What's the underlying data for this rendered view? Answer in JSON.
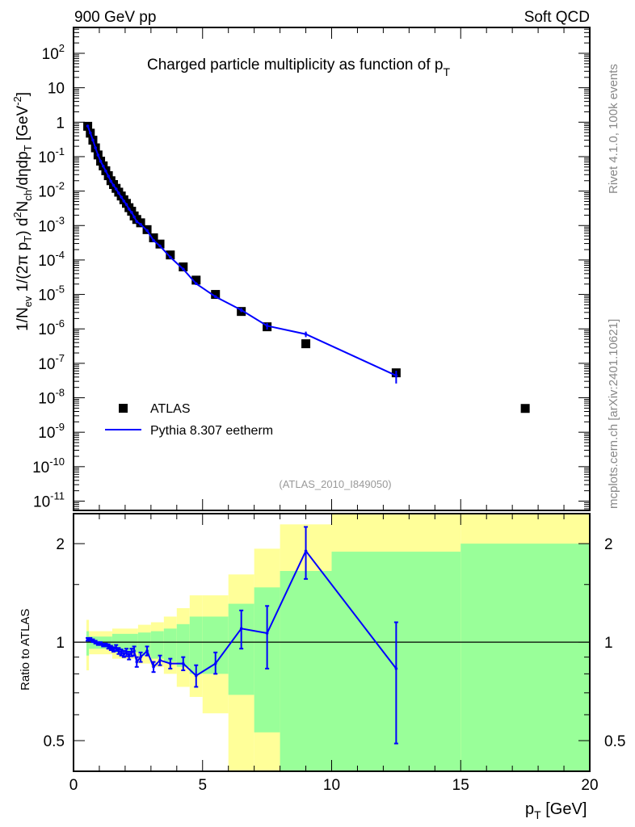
{
  "header": {
    "left": "900 GeV pp",
    "right": "Soft QCD"
  },
  "side_text": {
    "top": "Rivet 4.1.0,  100k events",
    "bottom": "mcplots.cern.ch [arXiv:2401.10621]"
  },
  "analysis_id": "(ATLAS_2010_I849050)",
  "chart_data": [
    {
      "type": "scatter",
      "title": "Charged particle multiplicity as function of p_T",
      "xlabel": "p_T [GeV]",
      "ylabel": "1/N_ev  1/(2π p_T)  d²N_ch/dηdp_T [GeV^-2]",
      "yscale": "log",
      "xlim": [
        0,
        20
      ],
      "ylim_log10": [
        -11.27,
        2.75
      ],
      "ytick_labels": [
        "10^2",
        "10",
        "1",
        "10^-1",
        "10^-2",
        "10^-3",
        "10^-4",
        "10^-5",
        "10^-6",
        "10^-7",
        "10^-8",
        "10^-9",
        "10^-10",
        "10^-11"
      ],
      "ytick_exponents": [
        2,
        1,
        0,
        -1,
        -2,
        -3,
        -4,
        -5,
        -6,
        -7,
        -8,
        -9,
        -10,
        -11
      ],
      "legend": {
        "placement": "bottom-left",
        "entries": [
          "ATLAS",
          "Pythia 8.307 eetherm"
        ]
      },
      "series": [
        {
          "name": "ATLAS",
          "style": "square-marker",
          "color": "#000000",
          "x": [
            0.55,
            0.65,
            0.75,
            0.85,
            0.95,
            1.05,
            1.15,
            1.25,
            1.35,
            1.45,
            1.55,
            1.65,
            1.75,
            1.85,
            1.95,
            2.05,
            2.15,
            2.25,
            2.35,
            2.45,
            2.6,
            2.85,
            3.1,
            3.35,
            3.75,
            4.25,
            4.75,
            5.5,
            6.5,
            7.5,
            9,
            12.5,
            17.5
          ],
          "y": [
            0.76,
            0.48,
            0.3,
            0.18,
            0.112,
            0.074,
            0.054,
            0.039,
            0.028,
            0.02,
            0.0155,
            0.012,
            0.0093,
            0.0072,
            0.0056,
            0.0044,
            0.0033,
            0.0026,
            0.0019,
            0.0015,
            0.0012,
            0.00076,
            0.00044,
            0.00029,
            0.00014,
            6.3e-05,
            2.6e-05,
            1e-05,
            3.2e-06,
            1.15e-06,
            3.7e-07,
            5.3e-08,
            4.9e-09
          ]
        },
        {
          "name": "Pythia 8.307 eetherm",
          "style": "line",
          "color": "#0000ff",
          "note": "MC = ATLAS × ratio (first 32 points)"
        }
      ]
    },
    {
      "type": "line",
      "ylabel": "Ratio to ATLAS",
      "xlabel": "p_T [GeV]",
      "yscale": "log",
      "xlim": [
        0,
        20
      ],
      "ylim": [
        0.403,
        2.47
      ],
      "xtick_labels": [
        "0",
        "5",
        "10",
        "15",
        "20"
      ],
      "xticks": [
        0,
        5,
        10,
        15,
        20
      ],
      "ytick_labels": [
        "0.5",
        "1",
        "2"
      ],
      "yticks": [
        0.5,
        1,
        2
      ],
      "ratio": {
        "x": [
          0.55,
          0.65,
          0.75,
          0.85,
          0.95,
          1.05,
          1.15,
          1.25,
          1.35,
          1.45,
          1.55,
          1.65,
          1.75,
          1.85,
          1.95,
          2.05,
          2.15,
          2.25,
          2.35,
          2.45,
          2.6,
          2.85,
          3.1,
          3.35,
          3.75,
          4.25,
          4.75,
          5.5,
          6.5,
          7.5,
          9,
          12.5
        ],
        "y": [
          1.02,
          1.02,
          1.01,
          1.0,
          0.99,
          0.99,
          0.98,
          0.98,
          0.97,
          0.96,
          0.95,
          0.96,
          0.94,
          0.93,
          0.92,
          0.93,
          0.91,
          0.93,
          0.94,
          0.87,
          0.9,
          0.94,
          0.84,
          0.88,
          0.86,
          0.86,
          0.79,
          0.86,
          1.1,
          1.065,
          1.9,
          0.83
        ],
        "err_lo": [
          0.01,
          0.01,
          0.01,
          0.01,
          0.01,
          0.01,
          0.01,
          0.01,
          0.015,
          0.015,
          0.015,
          0.02,
          0.02,
          0.02,
          0.02,
          0.025,
          0.025,
          0.025,
          0.03,
          0.03,
          0.03,
          0.03,
          0.03,
          0.03,
          0.03,
          0.04,
          0.06,
          0.06,
          0.145,
          0.235,
          0.34,
          0.34
        ],
        "err_hi": [
          0.01,
          0.01,
          0.01,
          0.01,
          0.01,
          0.01,
          0.01,
          0.01,
          0.015,
          0.015,
          0.015,
          0.02,
          0.02,
          0.02,
          0.02,
          0.025,
          0.025,
          0.025,
          0.03,
          0.03,
          0.03,
          0.03,
          0.03,
          0.03,
          0.03,
          0.04,
          0.06,
          0.07,
          0.15,
          0.225,
          0.35,
          0.32
        ]
      },
      "bands": [
        {
          "xlo": 0.5,
          "xhi": 0.6,
          "g": [
            0.91,
            1.08
          ],
          "y": [
            0.82,
            1.17
          ]
        },
        {
          "xlo": 0.6,
          "xhi": 1.5,
          "g": [
            0.954,
            1.04
          ],
          "y": [
            0.918,
            1.08
          ]
        },
        {
          "xlo": 1.5,
          "xhi": 2.5,
          "g": [
            0.93,
            1.06
          ],
          "y": [
            0.89,
            1.1
          ]
        },
        {
          "xlo": 2.5,
          "xhi": 3.0,
          "g": [
            0.91,
            1.07
          ],
          "y": [
            0.86,
            1.13
          ]
        },
        {
          "xlo": 3.0,
          "xhi": 3.5,
          "g": [
            0.89,
            1.08
          ],
          "y": [
            0.84,
            1.15
          ]
        },
        {
          "xlo": 3.5,
          "xhi": 4.0,
          "g": [
            0.87,
            1.1
          ],
          "y": [
            0.8,
            1.197
          ]
        },
        {
          "xlo": 4.0,
          "xhi": 4.5,
          "g": [
            0.84,
            1.135
          ],
          "y": [
            0.73,
            1.27
          ]
        },
        {
          "xlo": 4.5,
          "xhi": 5.0,
          "g": [
            0.8,
            1.197
          ],
          "y": [
            0.68,
            1.39
          ]
        },
        {
          "xlo": 5.0,
          "xhi": 6.0,
          "g": [
            0.8,
            1.197
          ],
          "y": [
            0.606,
            1.39
          ]
        },
        {
          "xlo": 6.0,
          "xhi": 7.0,
          "g": [
            0.69,
            1.31
          ],
          "y": [
            0.4,
            1.61
          ]
        },
        {
          "xlo": 7.0,
          "xhi": 8.0,
          "g": [
            0.53,
            1.47
          ],
          "y": [
            0.4,
            1.93
          ]
        },
        {
          "xlo": 8.0,
          "xhi": 10.0,
          "g": [
            0.4,
            1.65
          ],
          "y": [
            0.4,
            2.29
          ]
        },
        {
          "xlo": 10.0,
          "xhi": 15.0,
          "g": [
            0.4,
            1.89
          ],
          "y": [
            0.4,
            2.5
          ]
        },
        {
          "xlo": 15.0,
          "xhi": 20.0,
          "g": [
            0.4,
            2.0
          ],
          "y": [
            0.4,
            2.5
          ]
        }
      ],
      "colors": {
        "band_inner": "#99ff99",
        "band_outer": "#ffff99",
        "mc": "#0000ff"
      }
    }
  ]
}
